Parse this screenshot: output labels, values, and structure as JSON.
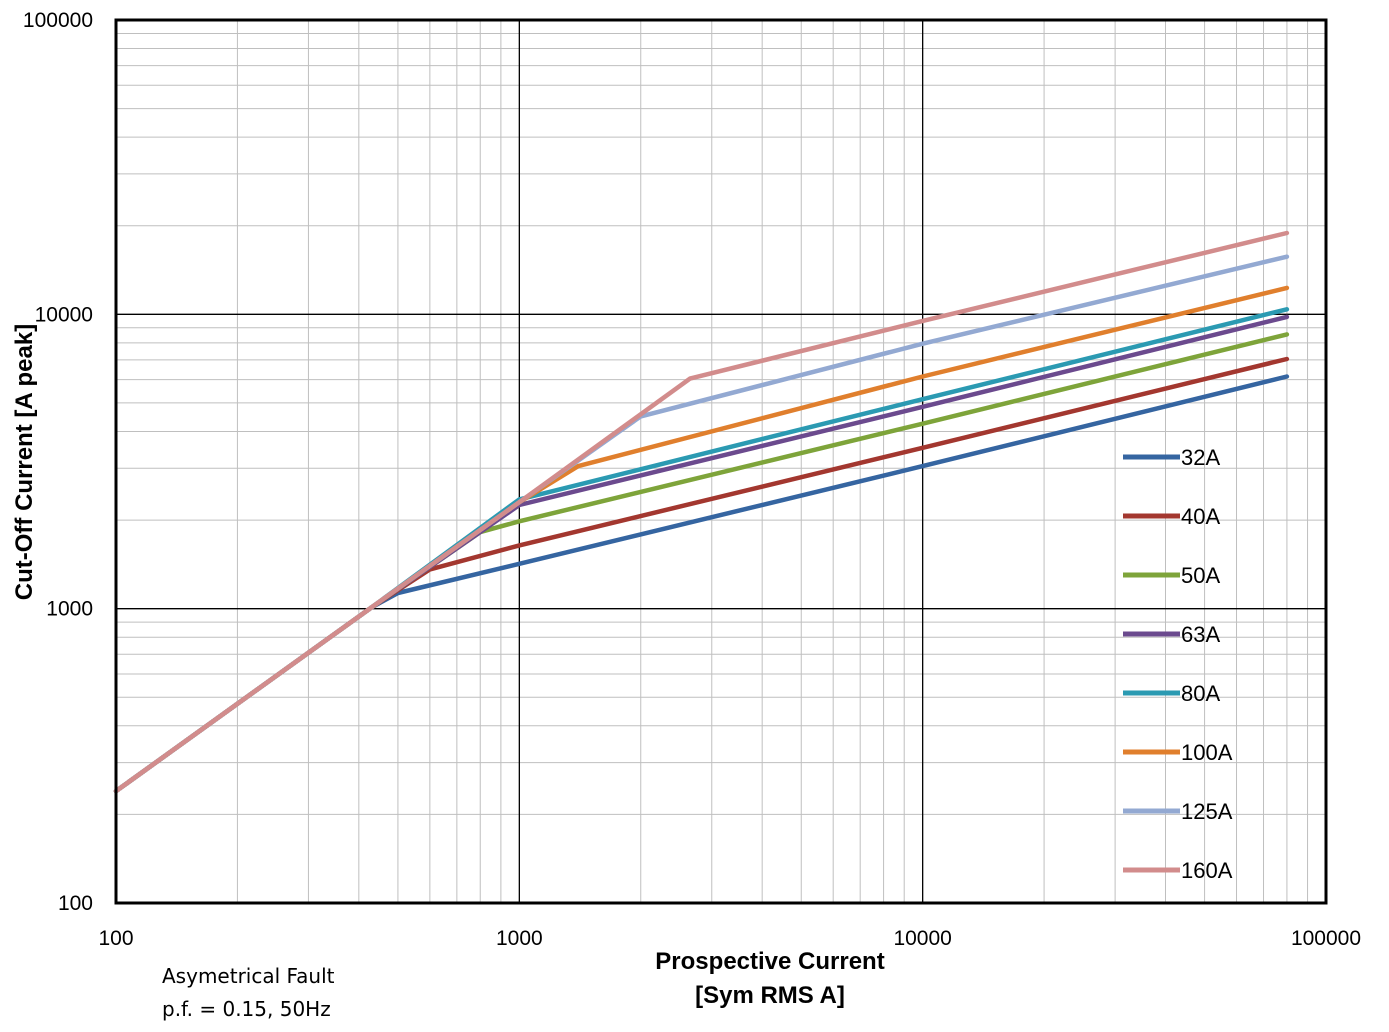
{
  "chart_data": {
    "type": "line",
    "xscale": "log",
    "yscale": "log",
    "xlim": [
      100,
      100000
    ],
    "ylim": [
      100,
      100000
    ],
    "xlabel": [
      "Prospective Current",
      "[Sym RMS A]"
    ],
    "ylabel": "Cut-Off Current [A peak]",
    "x_ticks": [
      "100",
      "1000",
      "10000",
      "100000"
    ],
    "y_ticks": [
      "100",
      "1000",
      "10000",
      "100000"
    ],
    "grid": true,
    "legend_position": "right",
    "series": [
      {
        "name": "32A",
        "color": "#3565A1",
        "x": [
          100,
          430,
          500,
          1000,
          10000,
          80000
        ],
        "y": [
          240,
          1010,
          1130,
          1420,
          3050,
          6150
        ]
      },
      {
        "name": "40A",
        "color": "#A3372F",
        "x": [
          100,
          430,
          600,
          1000,
          10000,
          80000
        ],
        "y": [
          240,
          1010,
          1360,
          1640,
          3520,
          7050
        ]
      },
      {
        "name": "50A",
        "color": "#7EA43A",
        "x": [
          100,
          430,
          800,
          1000,
          10000,
          80000
        ],
        "y": [
          240,
          1010,
          1820,
          1980,
          4250,
          8550
        ]
      },
      {
        "name": "63A",
        "color": "#6B4A8E",
        "x": [
          100,
          430,
          1000,
          10000,
          80000
        ],
        "y": [
          240,
          1010,
          2250,
          4850,
          9800
        ]
      },
      {
        "name": "80A",
        "color": "#2B9AB2",
        "x": [
          100,
          430,
          1000,
          10000,
          80000
        ],
        "y": [
          240,
          1010,
          2350,
          5150,
          10400
        ]
      },
      {
        "name": "100A",
        "color": "#E07F2D",
        "x": [
          100,
          430,
          1000,
          1400,
          10000,
          80000
        ],
        "y": [
          240,
          1010,
          2300,
          3050,
          6150,
          12300
        ]
      },
      {
        "name": "125A",
        "color": "#93A9D2",
        "x": [
          100,
          430,
          1000,
          2000,
          10000,
          80000
        ],
        "y": [
          240,
          1010,
          2300,
          4500,
          7950,
          15700
        ]
      },
      {
        "name": "160A",
        "color": "#D28C8C",
        "x": [
          100,
          430,
          1000,
          2650,
          10000,
          80000
        ],
        "y": [
          240,
          1010,
          2300,
          6050,
          9500,
          18900
        ]
      }
    ],
    "annotation": [
      "Asymetrical Fault",
      "p.f. = 0.15, 50Hz"
    ]
  }
}
